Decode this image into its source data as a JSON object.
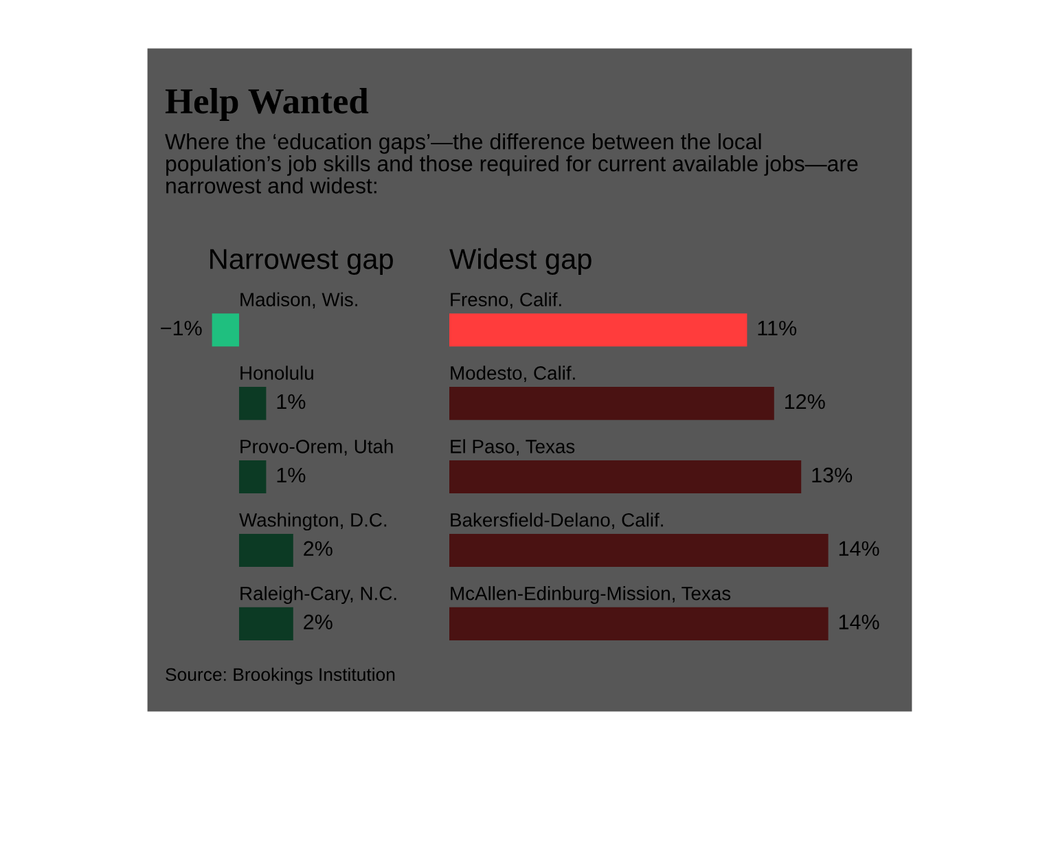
{
  "chart_data": [
    {
      "type": "other",
      "title": "Help Wanted",
      "subtitle": "Where the ‘education gaps’—the difference between the local\npopulation’s job skills and those required for current available jobs—are\nnarrowest and widest:",
      "annotations": [
        "Source: Brookings Institution"
      ]
    },
    {
      "type": "bar",
      "orientation": "horizontal",
      "title": "Narrowest gap",
      "categories": [
        "Madison, Wis.",
        "Honolulu",
        "Provo-Orem, Utah",
        "Washington, D.C.",
        "Raleigh-Cary, N.C."
      ],
      "values": [
        -1,
        1,
        1,
        2,
        2
      ],
      "colors": [
        "#1fbf7f",
        "#0c3a24",
        "#0c3a24",
        "#0c3a24",
        "#0c3a24"
      ],
      "value_labels": [
        "−1%",
        "1%",
        "1%",
        "2%",
        "2%"
      ],
      "tick_labels": false
    },
    {
      "type": "bar",
      "orientation": "horizontal",
      "title": "Widest gap",
      "categories": [
        "Fresno, Calif.",
        "Modesto, Calif.",
        "El Paso, Texas",
        "Bakersfield-Delano, Calif.",
        "McAllen-Edinburg-Mission, Texas"
      ],
      "values": [
        11,
        12,
        13,
        14,
        14
      ],
      "colors": [
        "#ff3c3c",
        "#4a1212",
        "#4a1212",
        "#4a1212",
        "#4a1212"
      ],
      "value_labels": [
        "11%",
        "12%",
        "13%",
        "14%",
        "14%"
      ],
      "tick_labels": false
    }
  ]
}
